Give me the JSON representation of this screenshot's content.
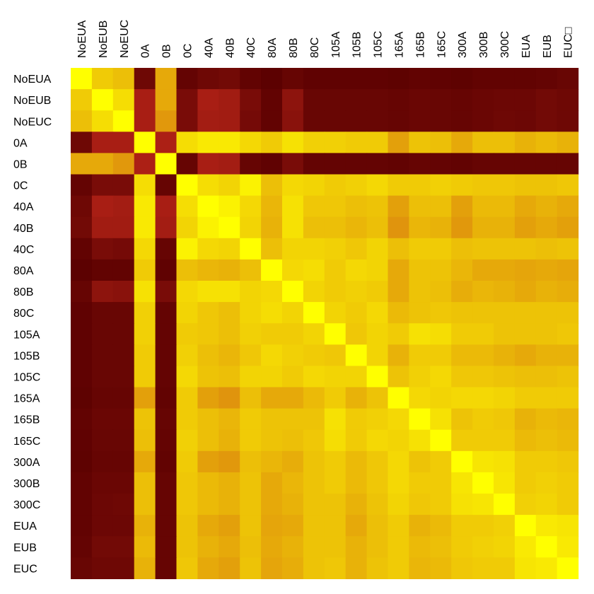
{
  "chart_data": {
    "type": "heatmap",
    "title": "",
    "xlabel": "",
    "ylabel": "",
    "row_labels": [
      "NoEUA",
      "NoEUB",
      "NoEUC",
      "0A",
      "0B",
      "0C",
      "40A",
      "40B",
      "40C",
      "80A",
      "80B",
      "80C",
      "105A",
      "105B",
      "105C",
      "165A",
      "165B",
      "165C",
      "300A",
      "300B",
      "300C",
      "EUA",
      "EUB",
      "EUC"
    ],
    "col_labels": [
      "NoEUA",
      "NoEUB",
      "NoEUC",
      "0A",
      "0B",
      "0C",
      "40A",
      "40B",
      "40C",
      "80A",
      "80B",
      "80C",
      "105A",
      "105B",
      "105C",
      "165A",
      "165B",
      "165C",
      "300A",
      "300B",
      "300C",
      "EUA",
      "EUB",
      "EUC□"
    ],
    "color_scale": {
      "low": "#5a0000",
      "mid": "#c0281a",
      "high": "#ffff00"
    },
    "values": [
      [
        1.0,
        0.88,
        0.85,
        0.1,
        0.8,
        0.05,
        0.1,
        0.12,
        0.04,
        0.01,
        0.06,
        0.03,
        0.03,
        0.03,
        0.03,
        0.02,
        0.04,
        0.03,
        0.02,
        0.04,
        0.04,
        0.04,
        0.05,
        0.07
      ],
      [
        0.88,
        1.0,
        0.92,
        0.38,
        0.8,
        0.15,
        0.38,
        0.35,
        0.15,
        0.04,
        0.25,
        0.07,
        0.07,
        0.07,
        0.07,
        0.06,
        0.08,
        0.07,
        0.06,
        0.08,
        0.09,
        0.09,
        0.12,
        0.1
      ],
      [
        0.85,
        0.92,
        1.0,
        0.38,
        0.76,
        0.15,
        0.36,
        0.35,
        0.13,
        0.04,
        0.23,
        0.07,
        0.07,
        0.07,
        0.07,
        0.06,
        0.08,
        0.07,
        0.06,
        0.08,
        0.1,
        0.09,
        0.12,
        0.1
      ],
      [
        0.1,
        0.38,
        0.38,
        1.0,
        0.4,
        0.92,
        0.95,
        0.95,
        0.91,
        0.88,
        0.93,
        0.89,
        0.89,
        0.88,
        0.88,
        0.78,
        0.86,
        0.85,
        0.8,
        0.85,
        0.85,
        0.82,
        0.84,
        0.82
      ],
      [
        0.8,
        0.8,
        0.76,
        0.4,
        1.0,
        0.06,
        0.38,
        0.36,
        0.06,
        0.03,
        0.15,
        0.05,
        0.05,
        0.05,
        0.05,
        0.04,
        0.06,
        0.05,
        0.04,
        0.06,
        0.06,
        0.06,
        0.06,
        0.06
      ],
      [
        0.05,
        0.15,
        0.15,
        0.92,
        0.06,
        1.0,
        0.92,
        0.9,
        0.97,
        0.85,
        0.91,
        0.9,
        0.88,
        0.89,
        0.91,
        0.88,
        0.88,
        0.89,
        0.88,
        0.87,
        0.87,
        0.86,
        0.86,
        0.87
      ],
      [
        0.1,
        0.38,
        0.36,
        0.95,
        0.38,
        0.92,
        1.0,
        0.97,
        0.91,
        0.83,
        0.93,
        0.87,
        0.87,
        0.85,
        0.86,
        0.78,
        0.85,
        0.85,
        0.78,
        0.84,
        0.84,
        0.8,
        0.82,
        0.8
      ],
      [
        0.12,
        0.35,
        0.35,
        0.95,
        0.36,
        0.9,
        0.97,
        1.0,
        0.9,
        0.82,
        0.93,
        0.85,
        0.85,
        0.83,
        0.85,
        0.75,
        0.83,
        0.82,
        0.76,
        0.82,
        0.82,
        0.78,
        0.8,
        0.78
      ],
      [
        0.04,
        0.15,
        0.13,
        0.91,
        0.06,
        0.97,
        0.91,
        0.9,
        1.0,
        0.85,
        0.9,
        0.9,
        0.89,
        0.87,
        0.9,
        0.85,
        0.88,
        0.88,
        0.85,
        0.86,
        0.86,
        0.86,
        0.85,
        0.86
      ],
      [
        0.01,
        0.04,
        0.04,
        0.88,
        0.03,
        0.85,
        0.83,
        0.82,
        0.85,
        1.0,
        0.91,
        0.92,
        0.88,
        0.91,
        0.9,
        0.8,
        0.86,
        0.86,
        0.83,
        0.8,
        0.8,
        0.79,
        0.8,
        0.79
      ],
      [
        0.06,
        0.25,
        0.23,
        0.93,
        0.15,
        0.91,
        0.93,
        0.93,
        0.9,
        0.91,
        1.0,
        0.9,
        0.88,
        0.89,
        0.88,
        0.8,
        0.86,
        0.85,
        0.81,
        0.83,
        0.82,
        0.8,
        0.82,
        0.81
      ],
      [
        0.03,
        0.07,
        0.07,
        0.89,
        0.05,
        0.9,
        0.87,
        0.85,
        0.9,
        0.92,
        0.9,
        1.0,
        0.9,
        0.88,
        0.91,
        0.84,
        0.86,
        0.87,
        0.86,
        0.86,
        0.86,
        0.86,
        0.86,
        0.86
      ],
      [
        0.03,
        0.07,
        0.07,
        0.89,
        0.05,
        0.88,
        0.87,
        0.85,
        0.89,
        0.88,
        0.88,
        0.9,
        1.0,
        0.87,
        0.9,
        0.88,
        0.93,
        0.92,
        0.88,
        0.88,
        0.86,
        0.86,
        0.86,
        0.87
      ],
      [
        0.03,
        0.07,
        0.07,
        0.88,
        0.05,
        0.89,
        0.85,
        0.83,
        0.87,
        0.91,
        0.89,
        0.88,
        0.87,
        1.0,
        0.9,
        0.82,
        0.88,
        0.88,
        0.84,
        0.84,
        0.82,
        0.8,
        0.82,
        0.82
      ],
      [
        0.03,
        0.07,
        0.07,
        0.88,
        0.05,
        0.91,
        0.86,
        0.85,
        0.9,
        0.9,
        0.88,
        0.91,
        0.9,
        0.9,
        1.0,
        0.86,
        0.89,
        0.91,
        0.87,
        0.87,
        0.86,
        0.85,
        0.85,
        0.86
      ],
      [
        0.02,
        0.06,
        0.06,
        0.78,
        0.04,
        0.88,
        0.78,
        0.75,
        0.85,
        0.8,
        0.8,
        0.84,
        0.88,
        0.82,
        0.86,
        1.0,
        0.91,
        0.9,
        0.91,
        0.91,
        0.9,
        0.88,
        0.88,
        0.88
      ],
      [
        0.04,
        0.08,
        0.08,
        0.86,
        0.06,
        0.88,
        0.85,
        0.83,
        0.88,
        0.86,
        0.86,
        0.86,
        0.93,
        0.88,
        0.89,
        0.91,
        1.0,
        0.93,
        0.86,
        0.88,
        0.87,
        0.82,
        0.84,
        0.83
      ],
      [
        0.03,
        0.07,
        0.07,
        0.85,
        0.05,
        0.89,
        0.85,
        0.82,
        0.88,
        0.86,
        0.85,
        0.87,
        0.92,
        0.88,
        0.91,
        0.9,
        0.93,
        1.0,
        0.88,
        0.88,
        0.88,
        0.84,
        0.85,
        0.84
      ],
      [
        0.02,
        0.06,
        0.06,
        0.8,
        0.04,
        0.88,
        0.78,
        0.76,
        0.85,
        0.83,
        0.81,
        0.86,
        0.88,
        0.84,
        0.87,
        0.91,
        0.86,
        0.88,
        1.0,
        0.94,
        0.93,
        0.88,
        0.88,
        0.87
      ],
      [
        0.04,
        0.08,
        0.08,
        0.85,
        0.06,
        0.87,
        0.84,
        0.82,
        0.86,
        0.8,
        0.83,
        0.86,
        0.88,
        0.84,
        0.87,
        0.91,
        0.88,
        0.88,
        0.94,
        1.0,
        0.94,
        0.88,
        0.89,
        0.88
      ],
      [
        0.04,
        0.09,
        0.1,
        0.85,
        0.06,
        0.87,
        0.84,
        0.82,
        0.86,
        0.8,
        0.82,
        0.86,
        0.86,
        0.82,
        0.86,
        0.9,
        0.87,
        0.88,
        0.93,
        0.94,
        1.0,
        0.89,
        0.9,
        0.88
      ],
      [
        0.04,
        0.09,
        0.09,
        0.82,
        0.06,
        0.86,
        0.8,
        0.78,
        0.86,
        0.79,
        0.8,
        0.86,
        0.86,
        0.8,
        0.85,
        0.88,
        0.82,
        0.84,
        0.88,
        0.88,
        0.89,
        1.0,
        0.95,
        0.94
      ],
      [
        0.05,
        0.12,
        0.12,
        0.84,
        0.06,
        0.86,
        0.82,
        0.8,
        0.85,
        0.8,
        0.82,
        0.86,
        0.86,
        0.82,
        0.85,
        0.88,
        0.84,
        0.85,
        0.88,
        0.89,
        0.9,
        0.95,
        1.0,
        0.95
      ],
      [
        0.07,
        0.1,
        0.1,
        0.82,
        0.06,
        0.87,
        0.8,
        0.78,
        0.86,
        0.79,
        0.81,
        0.86,
        0.87,
        0.82,
        0.86,
        0.88,
        0.83,
        0.84,
        0.87,
        0.88,
        0.88,
        0.94,
        0.95,
        1.0
      ]
    ]
  }
}
